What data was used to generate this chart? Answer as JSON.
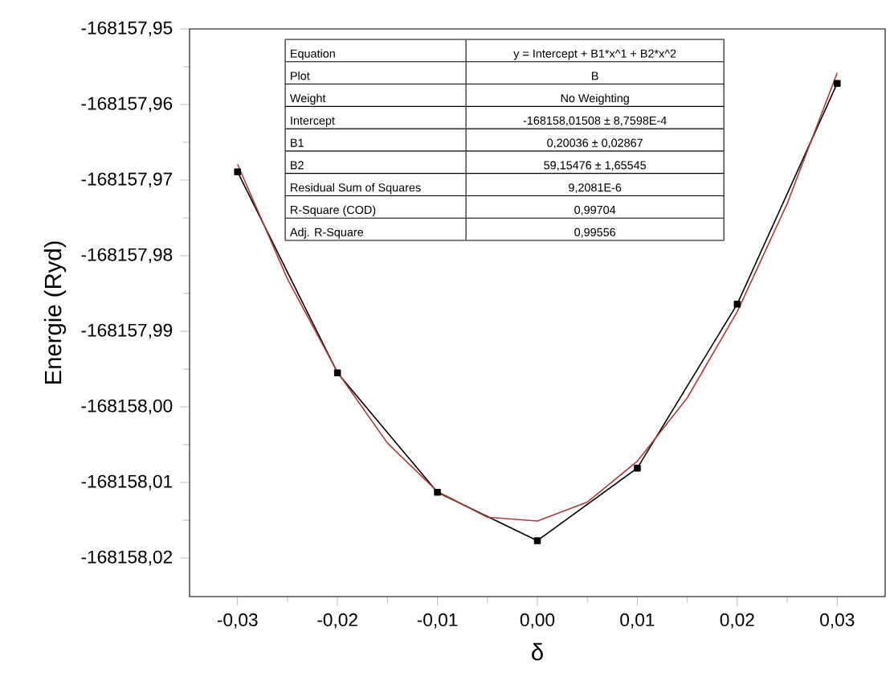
{
  "chart_data": {
    "type": "line",
    "xlabel": "δ",
    "ylabel": "Energie (Ryd)",
    "xlim": [
      -0.0348,
      0.0348
    ],
    "xticks": [
      {
        "value": -0.03,
        "label": "-0,03"
      },
      {
        "value": -0.02,
        "label": "-0,02"
      },
      {
        "value": -0.01,
        "label": "-0,01"
      },
      {
        "value": 0,
        "label": "0,00"
      },
      {
        "value": 0.01,
        "label": "0,01"
      },
      {
        "value": 0.02,
        "label": "0,02"
      },
      {
        "value": 0.03,
        "label": "0,03"
      }
    ],
    "ylim": [
      -168158.0251,
      -168157.95
    ],
    "yticks": [
      {
        "value": -168158.02,
        "label": "-168158,02"
      },
      {
        "value": -168158.01,
        "label": "-168158,01"
      },
      {
        "value": -168158.0,
        "label": "-168158,00"
      },
      {
        "value": -168157.99,
        "label": "-168157,99"
      },
      {
        "value": -168157.98,
        "label": "-168157,98"
      },
      {
        "value": -168157.97,
        "label": "-168157,97"
      },
      {
        "value": -168157.96,
        "label": "-168157,96"
      },
      {
        "value": -168157.95,
        "label": "-168157,95"
      }
    ],
    "series": [
      {
        "color": "#000000",
        "marker": "square",
        "x": [
          -0.03,
          -0.02,
          -0.01,
          0.0,
          0.01,
          0.02,
          0.03
        ],
        "values": [
          -168157.9689,
          -168157.9955,
          -168158.0113,
          -168158.0177,
          -168158.0081,
          -168157.9864,
          -168157.9572
        ]
      },
      {
        "color": "#b03a3a",
        "marker": "none",
        "x": [
          -0.03,
          -0.025,
          -0.02,
          -0.015,
          -0.01,
          -0.005,
          0.0,
          0.005,
          0.01,
          0.015,
          0.02,
          0.025,
          0.03
        ],
        "values": [
          -168157.9679,
          -168157.9831,
          -168157.9954,
          -168158.0048,
          -168158.0112,
          -168158.0146,
          -168158.0151,
          -168158.0126,
          -168158.0072,
          -168157.9988,
          -168157.9874,
          -168157.9731,
          -168157.9558
        ]
      }
    ],
    "annotations": [
      "Equation",
      "y = Intercept + B1*x^1 + B2*x^2",
      "Plot",
      "B",
      "Weight",
      "No Weighting",
      "Intercept",
      "-168158,01508 ± 8,7598E-4",
      "B1",
      "0,20036 ± 0,02867",
      "B2",
      "59,15476 ± 1,65545",
      "Residual Sum of Squares",
      "9,2081E-6",
      "R-Square (COD)",
      "0,99704",
      "Adj. R-Square",
      "0,99556"
    ]
  }
}
